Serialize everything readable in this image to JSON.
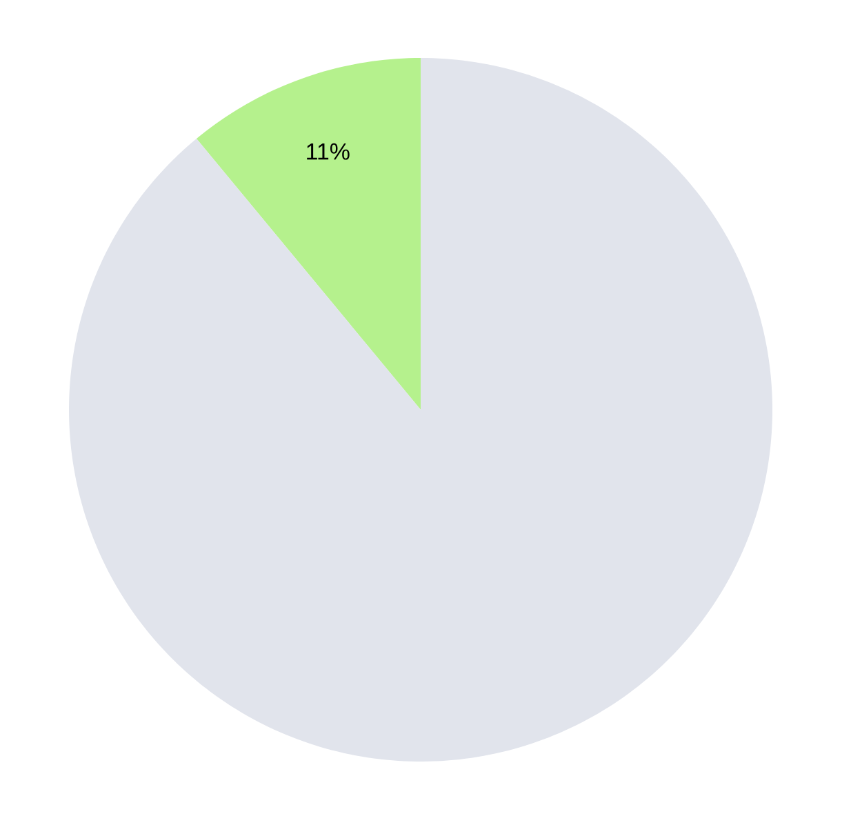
{
  "chart_data": {
    "type": "pie",
    "categories": [
      null,
      null
    ],
    "values": [
      11,
      89
    ],
    "colors": [
      "#b5f18d",
      "#e1e4ec"
    ],
    "value_labels": [
      "11%",
      null
    ]
  }
}
